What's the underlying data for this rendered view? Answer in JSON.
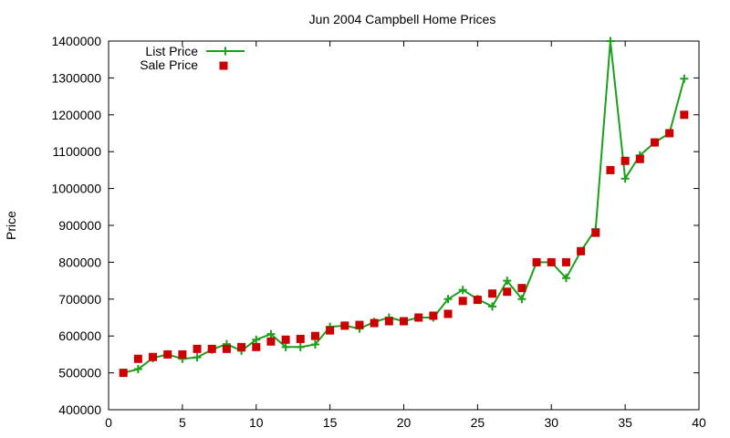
{
  "chart_data": {
    "type": "line",
    "title": "Jun 2004 Campbell Home Prices",
    "xlabel": "",
    "ylabel": "Price",
    "xlim": [
      0,
      40
    ],
    "ylim": [
      400000,
      1400000
    ],
    "x_ticks": [
      0,
      5,
      10,
      15,
      20,
      25,
      30,
      35,
      40
    ],
    "y_ticks": [
      400000,
      500000,
      600000,
      700000,
      800000,
      900000,
      1000000,
      1100000,
      1200000,
      1300000,
      1400000
    ],
    "grid": false,
    "legend_position": "top-left",
    "series": [
      {
        "name": "List Price",
        "style": "line-with-plus-markers",
        "color": "#1aa01a",
        "x": [
          1,
          2,
          3,
          4,
          5,
          6,
          7,
          8,
          9,
          10,
          11,
          12,
          13,
          14,
          15,
          16,
          17,
          18,
          19,
          20,
          21,
          22,
          23,
          24,
          25,
          26,
          27,
          28,
          29,
          30,
          31,
          32,
          33,
          34,
          35,
          36,
          37,
          38,
          39
        ],
        "values": [
          500000,
          510000,
          540000,
          550000,
          538000,
          542000,
          563000,
          578000,
          560000,
          590000,
          605000,
          570000,
          570000,
          577000,
          625000,
          628000,
          620000,
          638000,
          650000,
          640000,
          650000,
          650000,
          700000,
          725000,
          700000,
          680000,
          750000,
          700000,
          800000,
          800000,
          757000,
          830000,
          890000,
          1400000,
          1027000,
          1090000,
          1125000,
          1150000,
          1298000
        ]
      },
      {
        "name": "Sale Price",
        "style": "square-markers",
        "color": "#cc0000",
        "x": [
          1,
          2,
          3,
          4,
          5,
          6,
          7,
          8,
          9,
          10,
          11,
          12,
          13,
          14,
          15,
          16,
          17,
          18,
          19,
          20,
          21,
          22,
          23,
          24,
          25,
          26,
          27,
          28,
          29,
          30,
          31,
          32,
          33,
          34,
          35,
          36,
          37,
          38,
          39
        ],
        "values": [
          500000,
          538000,
          543000,
          550000,
          550000,
          565000,
          565000,
          565000,
          570000,
          570000,
          585000,
          590000,
          592000,
          600000,
          615000,
          628000,
          630000,
          635000,
          640000,
          640000,
          650000,
          655000,
          660000,
          695000,
          698000,
          715000,
          720000,
          730000,
          800000,
          800000,
          800000,
          830000,
          880000,
          1050000,
          1075000,
          1080000,
          1125000,
          1150000,
          1200000
        ]
      }
    ]
  }
}
